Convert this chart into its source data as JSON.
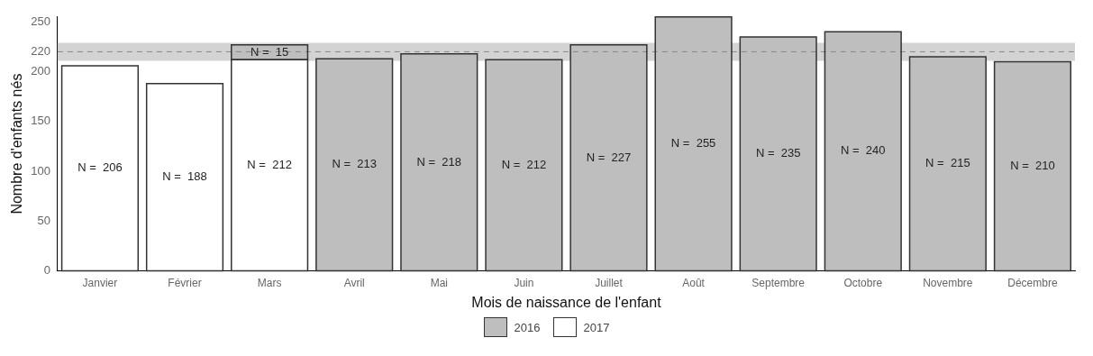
{
  "chart_data": {
    "type": "bar",
    "xlabel": "Mois de naissance de l'enfant",
    "ylabel": "Nombre d'enfants nés",
    "categories": [
      "Janvier",
      "Février",
      "Mars",
      "Avril",
      "Mai",
      "Juin",
      "Juillet",
      "Août",
      "Septembre",
      "Octobre",
      "Novembre",
      "Décembre"
    ],
    "stacked": true,
    "series": [
      {
        "name": "2017",
        "color": "#ffffff",
        "values": [
          206,
          188,
          212,
          null,
          null,
          null,
          null,
          null,
          null,
          null,
          null,
          null
        ],
        "value_labels": [
          "N =  206",
          "N =  188",
          "N =  212",
          null,
          null,
          null,
          null,
          null,
          null,
          null,
          null,
          null
        ]
      },
      {
        "name": "2016",
        "color": "#bebebe",
        "values": [
          null,
          null,
          15,
          213,
          218,
          212,
          227,
          255,
          235,
          240,
          215,
          210
        ],
        "value_labels": [
          null,
          null,
          "N =  15",
          "N =  213",
          "N =  218",
          "N =  212",
          "N =  227",
          "N =  255",
          "N =  235",
          "N =  240",
          "N =  215",
          "N =  210"
        ]
      }
    ],
    "ylim": [
      0,
      255
    ],
    "yticks": [
      0,
      50,
      100,
      150,
      200,
      220,
      250
    ],
    "ref_lines": [
      {
        "axis": "y",
        "value": 220,
        "line_style": "dashed",
        "color": "#888888"
      }
    ],
    "bands": [
      {
        "axis": "y",
        "from": 211,
        "to": 229,
        "color": "#d3d3d3"
      }
    ],
    "grid": false,
    "legend": "bottom"
  }
}
